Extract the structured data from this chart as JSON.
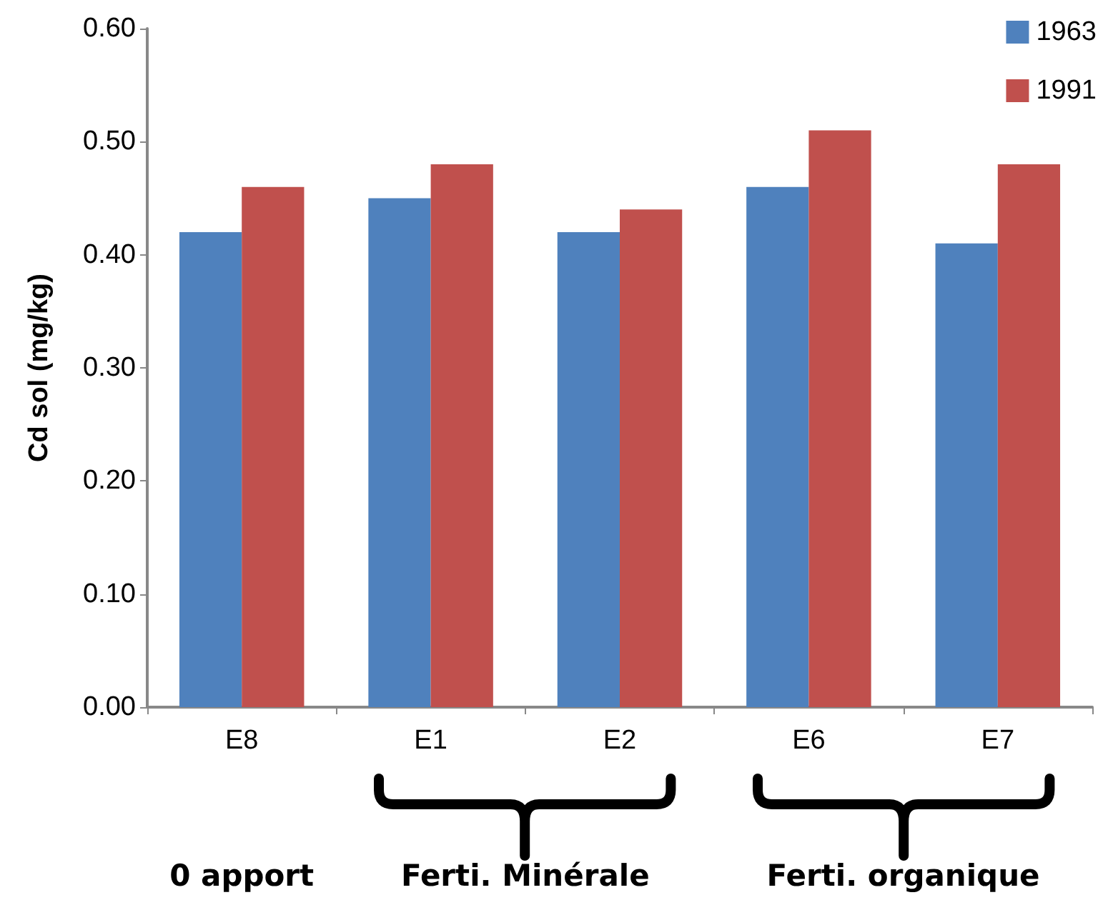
{
  "chart_data": {
    "type": "bar",
    "ylabel": "Cd sol (mg/kg)",
    "categories": [
      "E8",
      "E1",
      "E2",
      "E6",
      "E7"
    ],
    "series": [
      {
        "name": "1963",
        "color": "#4f81bd",
        "values": [
          0.42,
          0.45,
          0.42,
          0.46,
          0.41
        ]
      },
      {
        "name": "1991",
        "color": "#c0504d",
        "values": [
          0.46,
          0.48,
          0.44,
          0.51,
          0.48
        ]
      }
    ],
    "ylim": [
      0,
      0.6
    ],
    "yticks": [
      {
        "value": 0,
        "label": "0.00"
      },
      {
        "value": 0.1,
        "label": "0.10"
      },
      {
        "value": 0.2,
        "label": "0.20"
      },
      {
        "value": 0.3,
        "label": "0.30"
      },
      {
        "value": 0.4,
        "label": "0.40"
      },
      {
        "value": 0.5,
        "label": "0.50"
      },
      {
        "value": 0.6,
        "label": "0.60"
      }
    ],
    "grid": false,
    "legend": "top right",
    "annotations": [
      "0 apport",
      "Ferti. Minérale",
      "Ferti. organique"
    ]
  }
}
